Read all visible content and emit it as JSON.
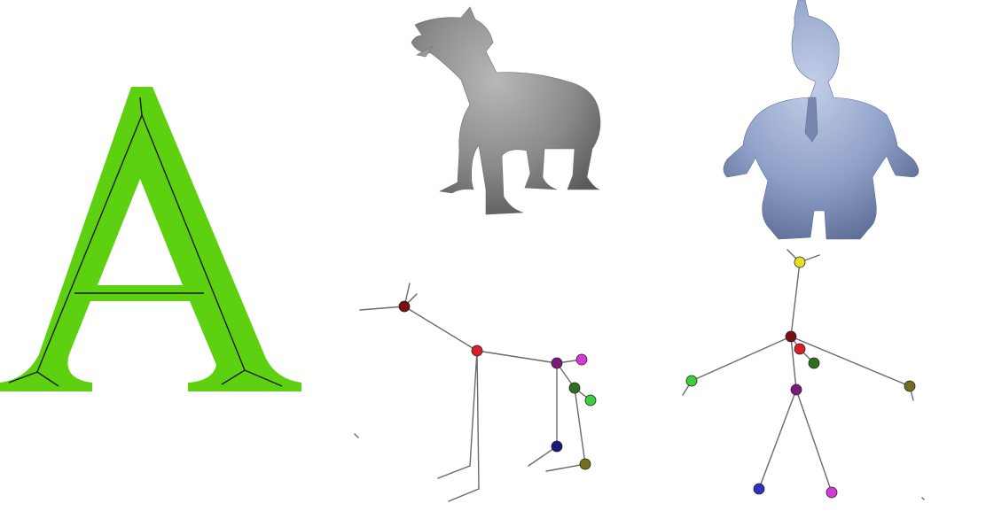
{
  "figure": {
    "panels": [
      {
        "id": "letter-a",
        "kind": "glyph-with-medial-axis",
        "glyph_color": "#5dd10f",
        "axis_color": "#1a1a1a"
      },
      {
        "id": "dog",
        "kind": "3d-model",
        "model_color": "#8a8a8a"
      },
      {
        "id": "humanoid",
        "kind": "3d-model",
        "model_color": "#8fa0c8"
      },
      {
        "id": "dog-skeleton",
        "kind": "curve-skeleton",
        "edge_color": "#6a6a6a",
        "joint_colors": [
          "#7a0f12",
          "#d81e2a",
          "#7a1a7a",
          "#d43ad4",
          "#2f6f1f",
          "#3ccf3c",
          "#1a1a7a",
          "#6f6f1f"
        ]
      },
      {
        "id": "humanoid-skeleton",
        "kind": "curve-skeleton",
        "edge_color": "#6a6a6a",
        "joint_colors": [
          "#e8e020",
          "#7a0f12",
          "#d81e2a",
          "#2f6f1f",
          "#3ccf3c",
          "#6f6f1f",
          "#7a1a7a",
          "#3030c0",
          "#d43ad4"
        ]
      }
    ]
  }
}
